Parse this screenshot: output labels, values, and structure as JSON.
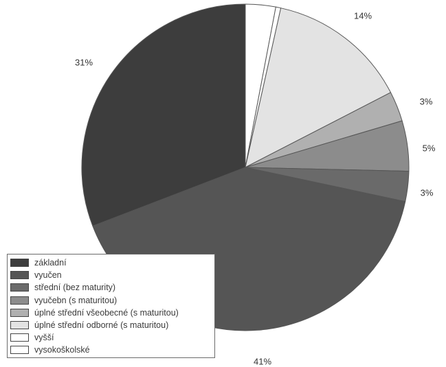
{
  "chart_data": {
    "type": "pie",
    "categories": [
      "základní",
      "vyučen",
      "střední (bez maturity)",
      "vyučebn (s maturitou)",
      "úplné střední všeobecné (s maturitou)",
      "úplné střední odborné (s maturitou)",
      "vyšší",
      "vysokoškolské"
    ],
    "values": [
      31,
      41,
      3,
      5,
      3,
      14,
      0.5,
      3
    ],
    "data_labels": [
      "31%",
      "41%",
      "3%",
      "5%",
      "3%",
      "14%",
      "",
      ""
    ],
    "colors": [
      "#3d3d3d",
      "#555555",
      "#6a6a6a",
      "#8c8c8c",
      "#b0b0b0",
      "#e3e3e3",
      "#ffffff",
      "#ffffff"
    ],
    "legend_placement": "bottom-left",
    "grid": false
  }
}
